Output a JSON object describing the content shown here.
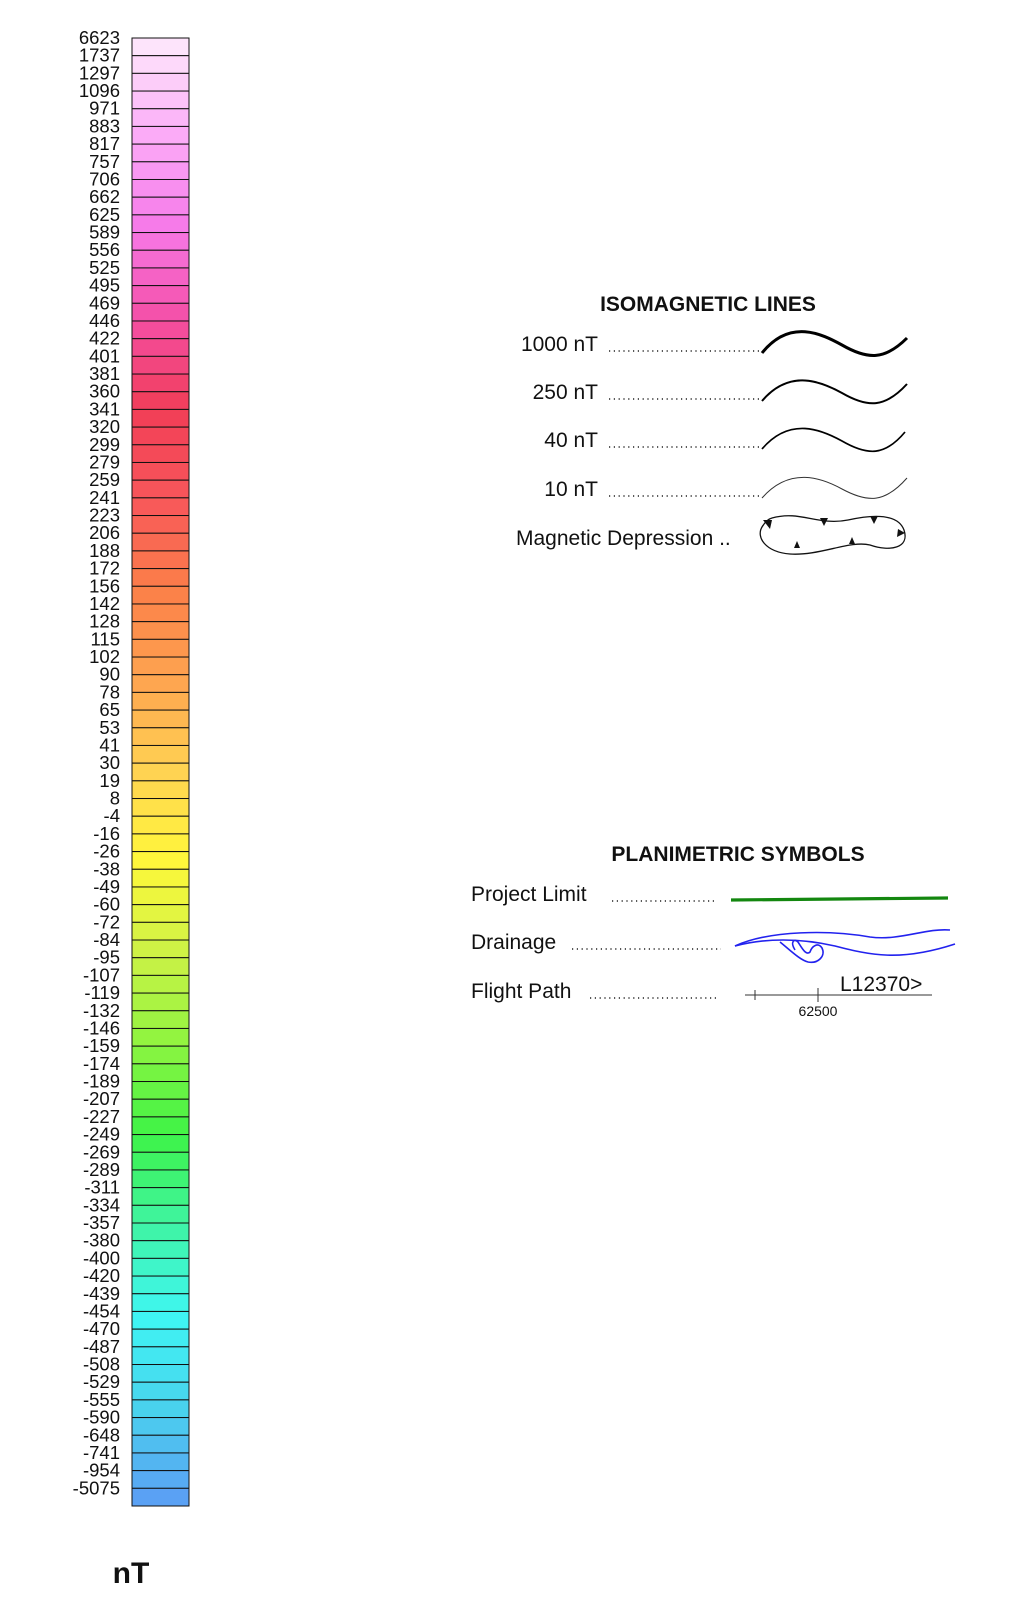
{
  "color_scale": {
    "unit": "nT",
    "labels": [
      "6623",
      "1737",
      "1297",
      "1096",
      "971",
      "883",
      "817",
      "757",
      "706",
      "662",
      "625",
      "589",
      "556",
      "525",
      "495",
      "469",
      "446",
      "422",
      "401",
      "381",
      "360",
      "341",
      "320",
      "299",
      "279",
      "259",
      "241",
      "223",
      "206",
      "188",
      "172",
      "156",
      "142",
      "128",
      "115",
      "102",
      "90",
      "78",
      "65",
      "53",
      "41",
      "30",
      "19",
      "8",
      "-4",
      "-16",
      "-26",
      "-38",
      "-49",
      "-60",
      "-72",
      "-84",
      "-95",
      "-107",
      "-119",
      "-132",
      "-146",
      "-159",
      "-174",
      "-189",
      "-207",
      "-227",
      "-249",
      "-269",
      "-289",
      "-311",
      "-334",
      "-357",
      "-380",
      "-400",
      "-420",
      "-439",
      "-454",
      "-470",
      "-487",
      "-508",
      "-529",
      "-555",
      "-590",
      "-648",
      "-741",
      "-954",
      "-5075"
    ],
    "color_stops": [
      "#fde4fb",
      "#fbaaf7",
      "#f679e8",
      "#f44fa6",
      "#f13d57",
      "#f8575a",
      "#fb8049",
      "#fea550",
      "#ffd352",
      "#fff83a",
      "#cdf246",
      "#8ef440",
      "#3ef347",
      "#3ff4a4",
      "#3ff6f4",
      "#49d3ed",
      "#5aa1f4"
    ]
  },
  "isomagnetic": {
    "title": "ISOMAGNETIC LINES",
    "items": [
      {
        "label": "1000 nT",
        "line": "1000nt"
      },
      {
        "label": "250 nT",
        "line": "250nt"
      },
      {
        "label": "40 nT",
        "line": "40nt"
      },
      {
        "label": "10 nT",
        "line": "10nt"
      }
    ],
    "depression_label": "Magnetic Depression .."
  },
  "planimetric": {
    "title": "PLANIMETRIC SYMBOLS",
    "project_limit_label": "Project Limit",
    "project_limit_color": "#13870f",
    "drainage_label": "Drainage",
    "drainage_color": "#2222ee",
    "flight_path_label": "Flight Path",
    "flight_fiducial": "62500",
    "flight_line_id": "L12370>"
  }
}
